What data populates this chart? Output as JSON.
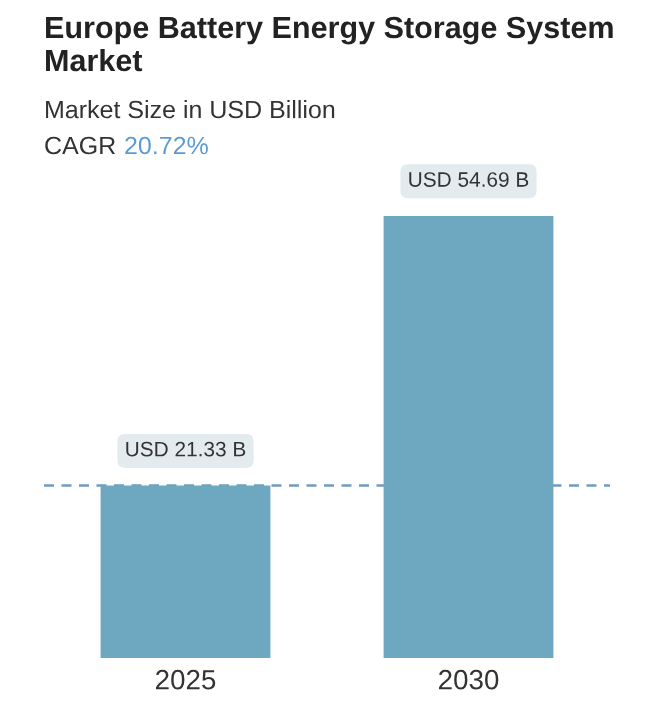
{
  "chart_data": {
    "type": "bar",
    "title": "Europe Battery Energy Storage System Market",
    "subtitle": "Market Size in USD Billion",
    "annotations": [
      "CAGR 20.72%"
    ],
    "categories": [
      "2025",
      "2030"
    ],
    "values": [
      21.33,
      54.69
    ],
    "value_labels": [
      "USD 21.33 B",
      "USD 54.69 B"
    ],
    "color": "#6ea7c0",
    "ref_lines": [
      {
        "axis": "y",
        "value": 21.33,
        "color": "#6f9cc0",
        "line_style": "dashed"
      }
    ],
    "grid": false,
    "legend": false
  }
}
